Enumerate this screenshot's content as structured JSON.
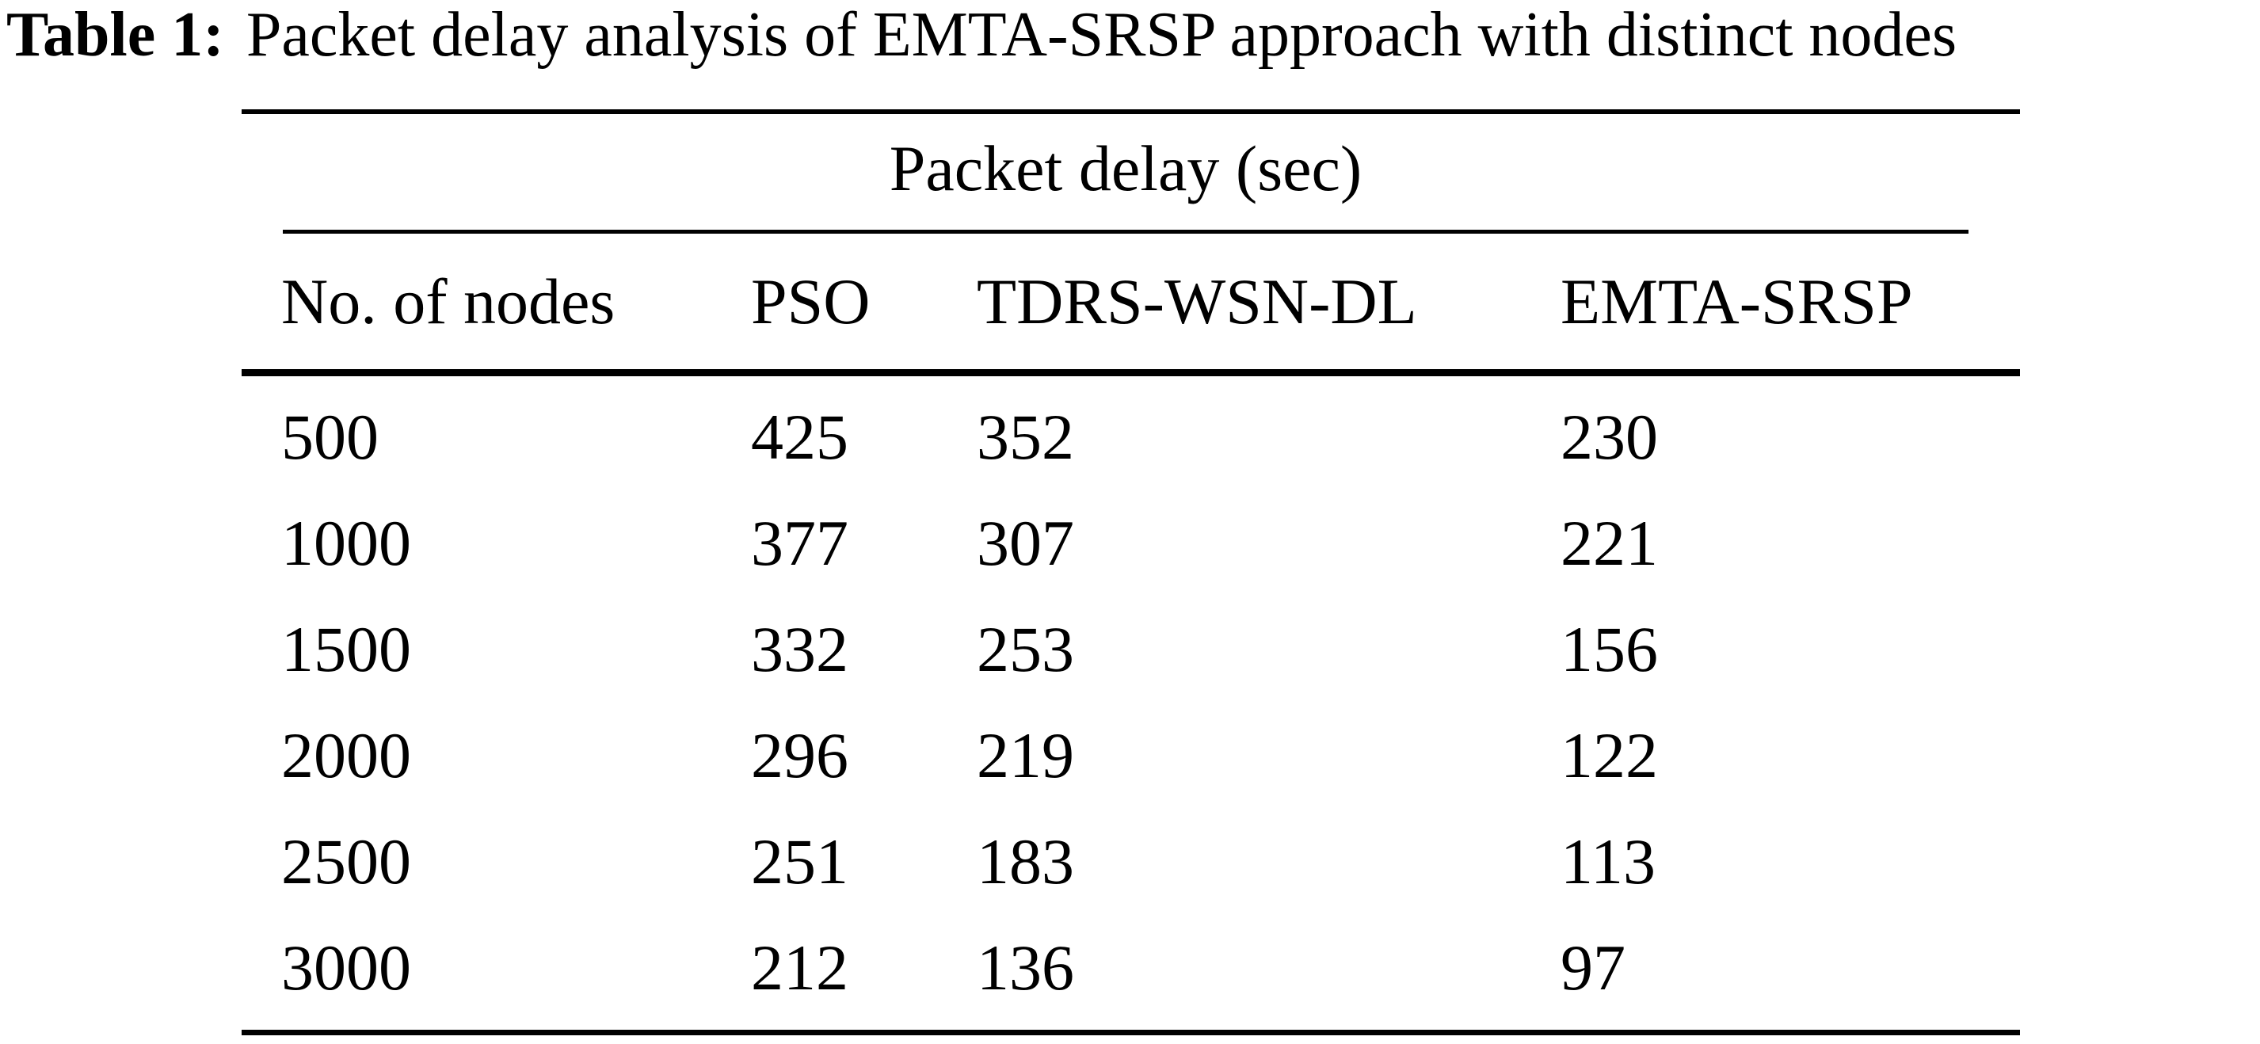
{
  "title": {
    "label": "Table 1:",
    "text": "Packet delay analysis of EMTA-SRSP approach with distinct nodes"
  },
  "table": {
    "group_header": "Packet delay (sec)",
    "columns": [
      "No. of nodes",
      "PSO",
      "TDRS-WSN-DL",
      "EMTA-SRSP"
    ],
    "rows": [
      {
        "cells": [
          "500",
          "425",
          "352",
          "230"
        ]
      },
      {
        "cells": [
          "1000",
          "377",
          "307",
          "221"
        ]
      },
      {
        "cells": [
          "1500",
          "332",
          "253",
          "156"
        ]
      },
      {
        "cells": [
          "2000",
          "296",
          "219",
          "122"
        ]
      },
      {
        "cells": [
          "2500",
          "251",
          "183",
          "113"
        ]
      },
      {
        "cells": [
          "3000",
          "212",
          "136",
          "97"
        ]
      }
    ]
  },
  "colors": {
    "text": "#000000",
    "background": "#ffffff",
    "rule": "#000000"
  },
  "chart_data": {
    "type": "table",
    "title": "Table 1: Packet delay analysis of EMTA-SRSP approach with distinct nodes",
    "group_header": "Packet delay (sec)",
    "categories": [
      500,
      1000,
      1500,
      2000,
      2500,
      3000
    ],
    "xlabel": "No. of nodes",
    "ylabel": "Packet delay (sec)",
    "series": [
      {
        "name": "PSO",
        "values": [
          425,
          377,
          332,
          296,
          251,
          212
        ]
      },
      {
        "name": "TDRS-WSN-DL",
        "values": [
          352,
          307,
          253,
          219,
          183,
          136
        ]
      },
      {
        "name": "EMTA-SRSP",
        "values": [
          230,
          221,
          156,
          122,
          113,
          97
        ]
      }
    ]
  }
}
